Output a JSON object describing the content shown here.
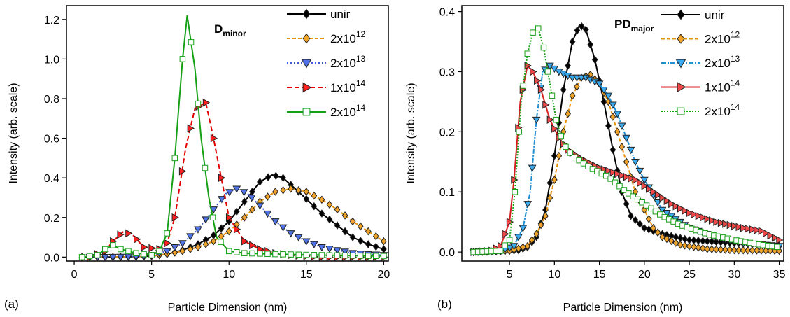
{
  "chart_data": [
    {
      "type": "line",
      "panel_label": "(a)",
      "annotation_main": "D",
      "annotation_sub": "minor",
      "xlabel": "Particle Dimension (nm)",
      "ylabel": "Intensity (arb. scale)",
      "xlim": [
        -0.5,
        20.3
      ],
      "ylim": [
        -0.02,
        1.27
      ],
      "xticks": [
        0,
        5,
        10,
        15,
        20
      ],
      "yticks": [
        0.0,
        0.2,
        0.4,
        0.6,
        0.8,
        1.0,
        1.2
      ],
      "ytick_labels": [
        "0.0",
        "0.2",
        "0.4",
        "0.6",
        "0.8",
        "1.0",
        "1.2"
      ],
      "grid": false,
      "legend_position": "top-right",
      "series": [
        {
          "name": "unir",
          "label_base": "unir",
          "label_exp": "",
          "color": "#000000",
          "fill": "#000000",
          "marker": "diamond",
          "dash": "",
          "points": [
            [
              0.5,
              0.0
            ],
            [
              2,
              0.0
            ],
            [
              4,
              0.002
            ],
            [
              5,
              0.005
            ],
            [
              6,
              0.015
            ],
            [
              7,
              0.035
            ],
            [
              8,
              0.065
            ],
            [
              9,
              0.11
            ],
            [
              10,
              0.18
            ],
            [
              11,
              0.28
            ],
            [
              12,
              0.38
            ],
            [
              12.8,
              0.415
            ],
            [
              13.5,
              0.4
            ],
            [
              14.5,
              0.33
            ],
            [
              16,
              0.22
            ],
            [
              17,
              0.16
            ],
            [
              18,
              0.1
            ],
            [
              19,
              0.065
            ],
            [
              20,
              0.04
            ]
          ]
        },
        {
          "name": "2x10^12",
          "label_base": "2x10",
          "label_exp": "12",
          "color": "#e8920c",
          "fill": "#f0a328",
          "marker": "diamond",
          "dash": "5,3",
          "points": [
            [
              0.5,
              0.0
            ],
            [
              2,
              0.0
            ],
            [
              4,
              0.002
            ],
            [
              5,
              0.006
            ],
            [
              6,
              0.015
            ],
            [
              7,
              0.03
            ],
            [
              8,
              0.05
            ],
            [
              9,
              0.08
            ],
            [
              10,
              0.13
            ],
            [
              11,
              0.2
            ],
            [
              12,
              0.28
            ],
            [
              13,
              0.33
            ],
            [
              14,
              0.345
            ],
            [
              15,
              0.33
            ],
            [
              16,
              0.29
            ],
            [
              17,
              0.24
            ],
            [
              18,
              0.18
            ],
            [
              19,
              0.13
            ],
            [
              20,
              0.08
            ]
          ]
        },
        {
          "name": "2x10^13",
          "label_base": "2x10",
          "label_exp": "13",
          "color": "#3a5bd8",
          "fill": "#4f72e6",
          "marker": "tri-down",
          "dash": "2,3",
          "points": [
            [
              1,
              0.0
            ],
            [
              3,
              0.001
            ],
            [
              4,
              0.003
            ],
            [
              5,
              0.01
            ],
            [
              6,
              0.03
            ],
            [
              7,
              0.07
            ],
            [
              8,
              0.14
            ],
            [
              9,
              0.24
            ],
            [
              9.8,
              0.32
            ],
            [
              10.5,
              0.345
            ],
            [
              11.2,
              0.32
            ],
            [
              12,
              0.26
            ],
            [
              13,
              0.18
            ],
            [
              14,
              0.12
            ],
            [
              15,
              0.08
            ],
            [
              16,
              0.05
            ],
            [
              17,
              0.035
            ],
            [
              18,
              0.02
            ],
            [
              19,
              0.015
            ],
            [
              20,
              0.01
            ]
          ]
        },
        {
          "name": "1x10^14",
          "label_base": "1x10",
          "label_exp": "14",
          "color": "#e00000",
          "fill": "#ff1f1f",
          "marker": "tri-right",
          "dash": "7,4",
          "points": [
            [
              1,
              0.0
            ],
            [
              2,
              0.03
            ],
            [
              2.5,
              0.08
            ],
            [
              3.2,
              0.13
            ],
            [
              3.8,
              0.11
            ],
            [
              4.5,
              0.05
            ],
            [
              5.5,
              0.04
            ],
            [
              6,
              0.07
            ],
            [
              6.5,
              0.2
            ],
            [
              7.2,
              0.55
            ],
            [
              7.8,
              0.75
            ],
            [
              8.5,
              0.78
            ],
            [
              9,
              0.6
            ],
            [
              9.5,
              0.4
            ],
            [
              10,
              0.2
            ],
            [
              11,
              0.08
            ],
            [
              12,
              0.04
            ],
            [
              13,
              0.02
            ],
            [
              14,
              0.01
            ],
            [
              16,
              0.0
            ],
            [
              20,
              0.0
            ]
          ]
        },
        {
          "name": "2x10^14",
          "label_base": "2x10",
          "label_exp": "14",
          "color": "#16a016",
          "fill": "#ffffff",
          "marker": "square",
          "dash": "",
          "points": [
            [
              0.5,
              0.0
            ],
            [
              1.5,
              0.01
            ],
            [
              2,
              0.04
            ],
            [
              2.5,
              0.06
            ],
            [
              3,
              0.04
            ],
            [
              3.5,
              0.03
            ],
            [
              4,
              0.02
            ],
            [
              5,
              0.01
            ],
            [
              5.5,
              0.03
            ],
            [
              6,
              0.12
            ],
            [
              6.5,
              0.5
            ],
            [
              7,
              1.0
            ],
            [
              7.3,
              1.22
            ],
            [
              7.8,
              0.95
            ],
            [
              8.2,
              0.6
            ],
            [
              8.7,
              0.3
            ],
            [
              9.2,
              0.1
            ],
            [
              10,
              0.03
            ],
            [
              11,
              0.02
            ],
            [
              13,
              0.015
            ],
            [
              16,
              0.01
            ],
            [
              20,
              0.005
            ]
          ]
        }
      ]
    },
    {
      "type": "line",
      "panel_label": "(b)",
      "annotation_main": "PD",
      "annotation_sub": "major",
      "xlabel": "Particle Dimension (nm)",
      "ylabel": "Intensity (arb. scale)",
      "xlim": [
        -0.3,
        35.5
      ],
      "ylim": [
        -0.015,
        0.41
      ],
      "xticks": [
        5,
        10,
        15,
        20,
        25,
        30,
        35
      ],
      "yticks": [
        0.0,
        0.1,
        0.2,
        0.3,
        0.4
      ],
      "ytick_labels": [
        "0.0",
        "0.1",
        "0.2",
        "0.3",
        "0.4"
      ],
      "grid": false,
      "legend_position": "top-right",
      "series": [
        {
          "name": "unir",
          "label_base": "unir",
          "label_exp": "",
          "color": "#000000",
          "fill": "#000000",
          "marker": "diamond",
          "dash": "",
          "points": [
            [
              1,
              0.0
            ],
            [
              4,
              0.001
            ],
            [
              6,
              0.003
            ],
            [
              7,
              0.008
            ],
            [
              8,
              0.025
            ],
            [
              9,
              0.07
            ],
            [
              10,
              0.16
            ],
            [
              11,
              0.27
            ],
            [
              12,
              0.35
            ],
            [
              12.8,
              0.378
            ],
            [
              13.5,
              0.37
            ],
            [
              14.5,
              0.32
            ],
            [
              15.5,
              0.25
            ],
            [
              16.5,
              0.17
            ],
            [
              17.5,
              0.1
            ],
            [
              18.5,
              0.06
            ],
            [
              20,
              0.04
            ],
            [
              22,
              0.03
            ],
            [
              25,
              0.02
            ],
            [
              30,
              0.015
            ],
            [
              35,
              0.01
            ]
          ]
        },
        {
          "name": "2x10^12",
          "label_base": "2x10",
          "label_exp": "12",
          "color": "#e8920c",
          "fill": "#f0a328",
          "marker": "diamond",
          "dash": "5,3",
          "points": [
            [
              1,
              0.0
            ],
            [
              5,
              0.002
            ],
            [
              7,
              0.01
            ],
            [
              8,
              0.03
            ],
            [
              9,
              0.06
            ],
            [
              10,
              0.12
            ],
            [
              11,
              0.2
            ],
            [
              12,
              0.26
            ],
            [
              13,
              0.29
            ],
            [
              14,
              0.295
            ],
            [
              15,
              0.28
            ],
            [
              16,
              0.25
            ],
            [
              17,
              0.2
            ],
            [
              18,
              0.15
            ],
            [
              19,
              0.1
            ],
            [
              20,
              0.07
            ],
            [
              21,
              0.04
            ],
            [
              22,
              0.025
            ],
            [
              24,
              0.012
            ],
            [
              27,
              0.005
            ],
            [
              30,
              0.003
            ],
            [
              35,
              0.002
            ]
          ]
        },
        {
          "name": "2x10^13",
          "label_base": "2x10",
          "label_exp": "13",
          "color": "#1f8fd6",
          "fill": "#3aaaf0",
          "marker": "tri-down",
          "dash": "7,2,2,2",
          "points": [
            [
              1,
              0.0
            ],
            [
              4,
              0.002
            ],
            [
              5.5,
              0.01
            ],
            [
              6.5,
              0.04
            ],
            [
              7.3,
              0.1
            ],
            [
              8,
              0.22
            ],
            [
              8.7,
              0.3
            ],
            [
              9.5,
              0.31
            ],
            [
              10.5,
              0.3
            ],
            [
              12,
              0.29
            ],
            [
              13.5,
              0.29
            ],
            [
              15,
              0.28
            ],
            [
              16,
              0.26
            ],
            [
              17,
              0.23
            ],
            [
              18,
              0.19
            ],
            [
              19,
              0.15
            ],
            [
              20,
              0.12
            ],
            [
              22,
              0.07
            ],
            [
              25,
              0.04
            ],
            [
              28,
              0.025
            ],
            [
              31,
              0.015
            ],
            [
              35,
              0.01
            ]
          ]
        },
        {
          "name": "1x10^14",
          "label_base": "1x10",
          "label_exp": "14",
          "color": "#d42020",
          "fill": "#f04848",
          "marker": "tri-right",
          "dash": "",
          "points": [
            [
              1,
              0.0
            ],
            [
              3,
              0.002
            ],
            [
              4,
              0.01
            ],
            [
              5,
              0.05
            ],
            [
              5.5,
              0.12
            ],
            [
              6.2,
              0.25
            ],
            [
              7,
              0.31
            ],
            [
              7.6,
              0.3
            ],
            [
              8.5,
              0.27
            ],
            [
              9.5,
              0.22
            ],
            [
              10.5,
              0.19
            ],
            [
              11.5,
              0.17
            ],
            [
              13,
              0.155
            ],
            [
              15,
              0.14
            ],
            [
              17,
              0.13
            ],
            [
              19,
              0.12
            ],
            [
              21,
              0.1
            ],
            [
              23,
              0.08
            ],
            [
              25,
              0.065
            ],
            [
              28,
              0.05
            ],
            [
              31,
              0.04
            ],
            [
              33,
              0.035
            ],
            [
              35,
              0.02
            ]
          ]
        },
        {
          "name": "2x10^14",
          "label_base": "2x10",
          "label_exp": "14",
          "color": "#16a016",
          "fill": "#ffffff",
          "marker": "square",
          "dash": "2,2",
          "points": [
            [
              1,
              0.0
            ],
            [
              4,
              0.002
            ],
            [
              5,
              0.02
            ],
            [
              5.6,
              0.1
            ],
            [
              6.3,
              0.25
            ],
            [
              7,
              0.33
            ],
            [
              7.6,
              0.365
            ],
            [
              8.2,
              0.372
            ],
            [
              8.8,
              0.34
            ],
            [
              9.5,
              0.28
            ],
            [
              10.2,
              0.22
            ],
            [
              11,
              0.18
            ],
            [
              12,
              0.16
            ],
            [
              14,
              0.14
            ],
            [
              16,
              0.125
            ],
            [
              18,
              0.1
            ],
            [
              20,
              0.08
            ],
            [
              22,
              0.06
            ],
            [
              24,
              0.045
            ],
            [
              27,
              0.03
            ],
            [
              30,
              0.02
            ],
            [
              33,
              0.012
            ],
            [
              35,
              0.008
            ]
          ]
        }
      ]
    }
  ]
}
